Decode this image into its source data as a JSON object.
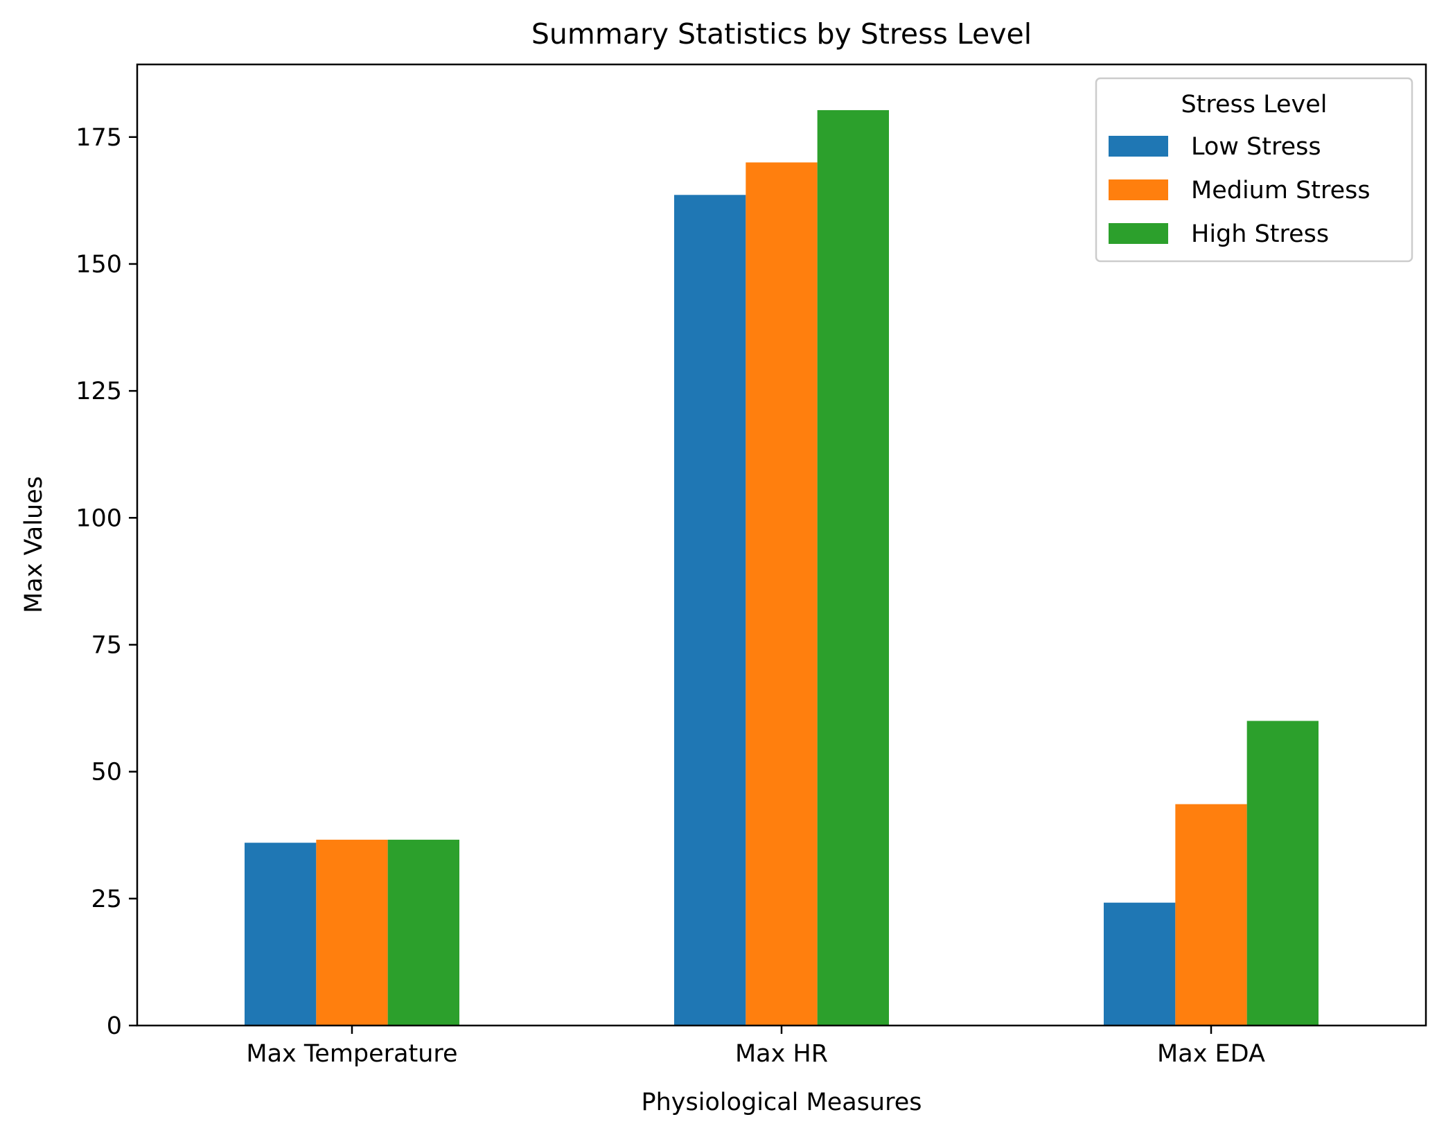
{
  "chart_data": {
    "type": "bar",
    "title": "Summary Statistics by Stress Level",
    "xlabel": "Physiological Measures",
    "ylabel": "Max Values",
    "categories": [
      "Max Temperature",
      "Max HR",
      "Max EDA"
    ],
    "series": [
      {
        "name": "Low Stress",
        "color": "#1f77b4",
        "values": [
          36.0,
          163.6,
          24.2
        ]
      },
      {
        "name": "Medium Stress",
        "color": "#ff7f0e",
        "values": [
          36.6,
          170.0,
          43.6
        ]
      },
      {
        "name": "High Stress",
        "color": "#2ca02c",
        "values": [
          36.6,
          180.3,
          60.0
        ]
      }
    ],
    "ylim": [
      0,
      189.3
    ],
    "yticks": [
      0,
      25,
      50,
      75,
      100,
      125,
      150,
      175
    ],
    "legend": {
      "title": "Stress Level",
      "placement": "top-right"
    },
    "grid": false
  }
}
